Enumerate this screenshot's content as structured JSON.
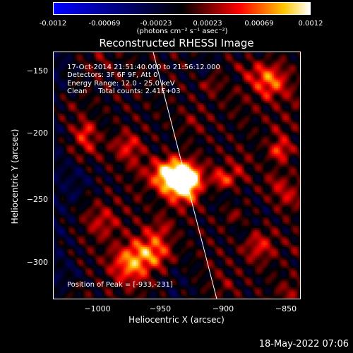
{
  "colorbar": {
    "ticks": [
      "-0.0012",
      "-0.00069",
      "-0.00023",
      "0.00023",
      "0.00069",
      "0.0012"
    ],
    "tick_values": [
      -0.0012,
      -0.00069,
      -0.00023,
      0.00023,
      0.00069,
      0.0012
    ],
    "range": [
      -0.0012,
      0.0012
    ],
    "units": "(photons cm⁻² s⁻¹ asec⁻²)",
    "colors": [
      "#0000ff",
      "#000000",
      "#ff0000",
      "#ffff00",
      "#ffffff"
    ]
  },
  "chart_data": {
    "type": "heatmap",
    "title": "Reconstructed RHESSI Image",
    "xlabel": "Heliocentric X (arcsec)",
    "ylabel": "Heliocentric Y (arcsec)",
    "xlim": [
      -1035,
      -837
    ],
    "ylim": [
      -327,
      -129
    ],
    "x_ticks": [
      "−1000",
      "−950",
      "−900",
      "−850"
    ],
    "x_tick_values": [
      -1000,
      -950,
      -900,
      -850
    ],
    "y_ticks": [
      "−150",
      "−200",
      "−250",
      "−300"
    ],
    "y_tick_values": [
      -150,
      -200,
      -250,
      -300
    ],
    "peak": [
      -933,
      -231
    ],
    "limb_points": [
      [
        -955,
        -129
      ],
      [
        -904,
        -327
      ]
    ],
    "annotations": {
      "time_range": "17-Oct-2014 21:51:40.000 to 21:56:12.000",
      "detectors": "Detectors: 3F 6F 9F, Att 0",
      "energy": "Energy Range: 12.0 - 25.0 keV",
      "clean": "Clean     Total counts: 2.41E+03",
      "peak_label": "Position of Peak = [-933,-231]"
    }
  },
  "timestamp": "18-May-2022 07:06"
}
